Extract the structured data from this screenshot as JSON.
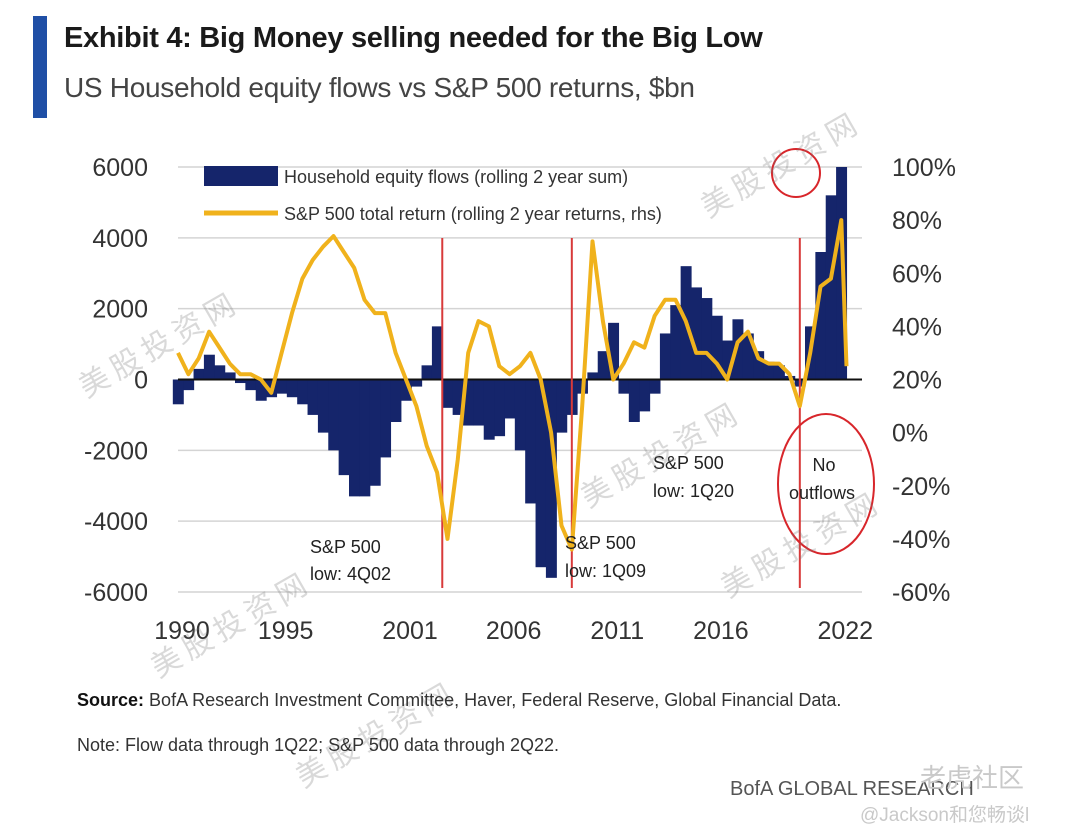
{
  "header": {
    "title": "Exhibit 4: Big Money selling needed for the Big Low",
    "subtitle": "US Household equity flows vs S&P 500 returns, $bn"
  },
  "footer": {
    "source_label": "Source:",
    "source_text": "BofA Research Investment Committee, Haver, Federal Reserve, Global Financial Data.",
    "note": "Note: Flow data through 1Q22; S&P 500 data through 2Q22.",
    "brand": "BofA GLOBAL RESEARCH",
    "site_watermark": "老虎社区",
    "user_watermark": "@Jackson和您畅谈l",
    "watermark_text": "美股投资网"
  },
  "colors": {
    "flows": "#15256b",
    "sp500": "#f0b21c",
    "event_line": "#d83a3a",
    "circle": "#d8262b",
    "grid": "#d4d4d4"
  },
  "chart_data": {
    "type": "bar+line",
    "legend": [
      {
        "name": "Household equity flows (rolling 2 year sum)",
        "color": "#15256b",
        "kind": "bar"
      },
      {
        "name": "S&P 500 total return (rolling 2 year returns, rhs)",
        "color": "#f0b21c",
        "kind": "line"
      }
    ],
    "legend_placement": "top-left",
    "y_left": {
      "min": -6000,
      "max": 6000,
      "ticks": [
        "6000",
        "4000",
        "2000",
        "0",
        "-2000",
        "-4000",
        "-6000"
      ]
    },
    "y_right": {
      "min": -60,
      "max": 100,
      "ticks": [
        "100%",
        "80%",
        "60%",
        "40%",
        "20%",
        "0%",
        "-20%",
        "-40%",
        "-60%"
      ]
    },
    "x_axis": {
      "min": 1990,
      "max": 2023,
      "ticks": [
        "1990",
        "1995",
        "2001",
        "2006",
        "2011",
        "2016",
        "2022"
      ]
    },
    "grid": true,
    "series": [
      {
        "name": "Household equity flows (rolling 2 year sum)",
        "axis": "left",
        "x": [
          1990.0,
          1990.5,
          1991.0,
          1991.5,
          1992.0,
          1992.5,
          1993.0,
          1993.5,
          1994.0,
          1994.5,
          1995.0,
          1995.5,
          1996.0,
          1996.5,
          1997.0,
          1997.5,
          1998.0,
          1998.5,
          1999.0,
          1999.5,
          2000.0,
          2000.5,
          2001.0,
          2001.5,
          2002.0,
          2002.5,
          2003.0,
          2003.5,
          2004.0,
          2004.5,
          2005.0,
          2005.5,
          2006.0,
          2006.5,
          2007.0,
          2007.5,
          2008.0,
          2008.5,
          2009.0,
          2009.5,
          2010.0,
          2010.5,
          2011.0,
          2011.5,
          2012.0,
          2012.5,
          2013.0,
          2013.5,
          2014.0,
          2014.5,
          2015.0,
          2015.5,
          2016.0,
          2016.5,
          2017.0,
          2017.5,
          2018.0,
          2018.5,
          2019.0,
          2019.5,
          2020.0,
          2020.5,
          2021.0,
          2021.5,
          2022.0
        ],
        "values": [
          -700,
          -300,
          300,
          700,
          400,
          200,
          -100,
          -300,
          -600,
          -500,
          -400,
          -500,
          -700,
          -1000,
          -1500,
          -2000,
          -2700,
          -3300,
          -3300,
          -3000,
          -2200,
          -1200,
          -600,
          -200,
          400,
          1500,
          -800,
          -1000,
          -1300,
          -1300,
          -1700,
          -1600,
          -1100,
          -2000,
          -3500,
          -5300,
          -5600,
          -1500,
          -1000,
          -400,
          200,
          800,
          1600,
          -400,
          -1200,
          -900,
          -400,
          1300,
          2100,
          3200,
          2600,
          2300,
          1800,
          1100,
          1700,
          1300,
          800,
          500,
          400,
          100,
          -200,
          1500,
          3600,
          5200,
          6000
        ]
      },
      {
        "name": "S&P 500 total return (rolling 2 year returns, rhs)",
        "axis": "right",
        "x": [
          1990.0,
          1990.5,
          1991.0,
          1991.5,
          1992.0,
          1992.5,
          1993.0,
          1993.5,
          1994.0,
          1994.5,
          1995.0,
          1995.5,
          1996.0,
          1996.5,
          1997.0,
          1997.5,
          1998.0,
          1998.5,
          1999.0,
          1999.5,
          2000.0,
          2000.5,
          2001.0,
          2001.5,
          2002.0,
          2002.5,
          2003.0,
          2003.5,
          2004.0,
          2004.5,
          2005.0,
          2005.5,
          2006.0,
          2006.5,
          2007.0,
          2007.5,
          2008.0,
          2008.5,
          2009.0,
          2009.5,
          2010.0,
          2010.5,
          2011.0,
          2011.5,
          2012.0,
          2012.5,
          2013.0,
          2013.5,
          2014.0,
          2014.5,
          2015.0,
          2015.5,
          2016.0,
          2016.5,
          2017.0,
          2017.5,
          2018.0,
          2018.5,
          2019.0,
          2019.5,
          2020.0,
          2020.5,
          2021.0,
          2021.5,
          2022.0,
          2022.25
        ],
        "values": [
          30,
          22,
          28,
          38,
          32,
          26,
          22,
          22,
          20,
          15,
          30,
          45,
          58,
          65,
          70,
          74,
          68,
          62,
          50,
          45,
          45,
          30,
          20,
          10,
          -5,
          -15,
          -40,
          -10,
          30,
          42,
          40,
          25,
          22,
          25,
          30,
          20,
          0,
          -35,
          -44,
          10,
          72,
          42,
          20,
          26,
          34,
          32,
          44,
          50,
          50,
          42,
          30,
          30,
          26,
          20,
          34,
          38,
          28,
          26,
          26,
          22,
          10,
          30,
          55,
          58,
          80,
          25
        ]
      }
    ],
    "annotations": [
      {
        "text": "S&P 500 low: 4Q02",
        "x": 2002.75
      },
      {
        "text": "S&P 500 low: 1Q09",
        "x": 2009.0
      },
      {
        "text": "S&P 500 low: 1Q20",
        "x": 2020.0
      },
      {
        "text": "No outflows",
        "x": 2022.0
      }
    ],
    "event_lines_x": [
      2002.75,
      2009.0,
      2020.0
    ],
    "ann_lines": {
      "a1_1": "S&P 500",
      "a1_2": "low: 4Q02",
      "a2_1": "S&P 500",
      "a2_2": "low: 1Q09",
      "a3_1": "S&P 500",
      "a3_2": "low: 1Q20",
      "a4_1": "No",
      "a4_2": "outflows"
    }
  }
}
